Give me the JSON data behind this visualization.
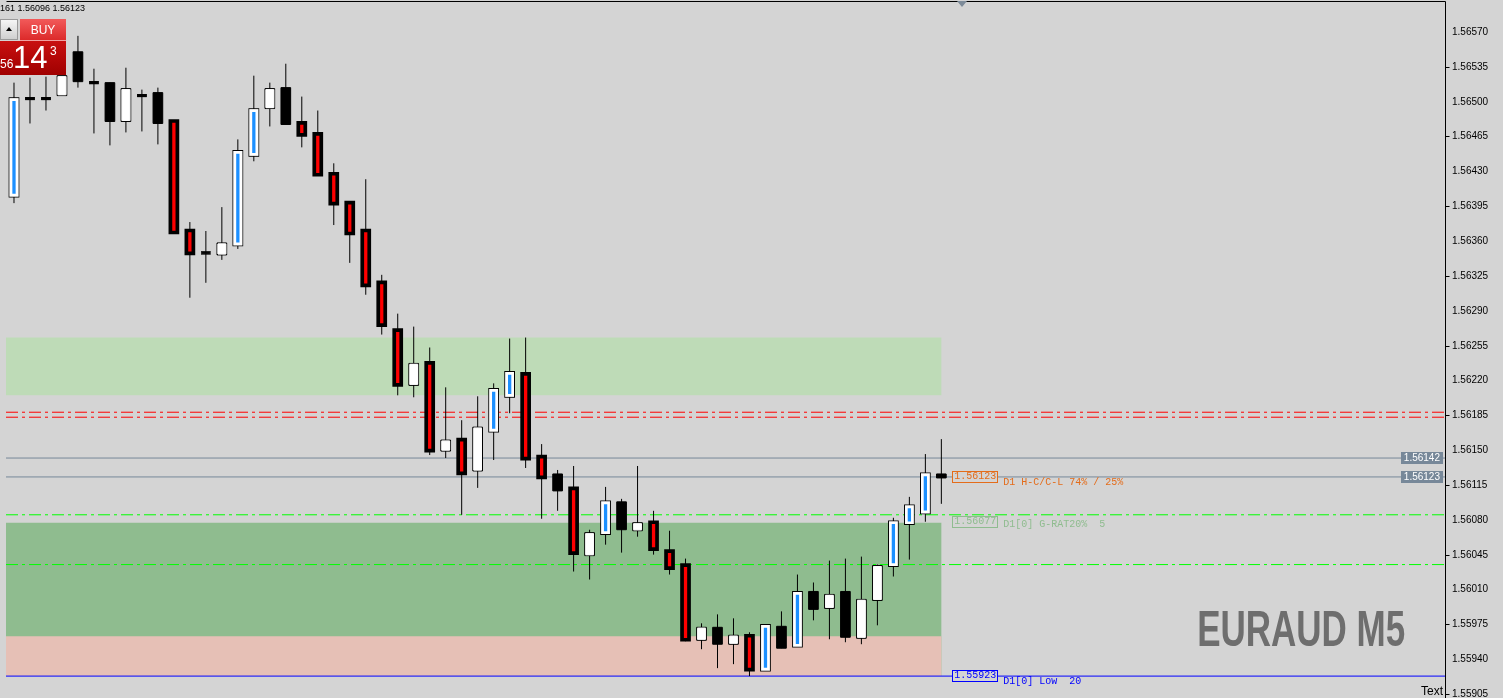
{
  "chart_data": {
    "type": "candlestick",
    "categories": [
      null,
      null,
      null,
      null,
      null,
      null,
      null,
      null,
      null,
      null,
      null,
      null,
      null,
      null,
      null,
      null,
      null,
      null,
      null,
      null,
      null,
      null,
      null,
      null,
      null,
      null,
      null,
      null,
      null,
      null,
      null,
      null,
      null,
      null,
      null,
      null,
      null,
      null,
      null,
      null,
      null,
      null,
      null,
      null,
      null,
      null,
      null,
      null,
      null,
      null,
      null,
      null,
      null,
      null,
      null,
      null,
      null,
      null,
      null,
      null,
      null,
      null,
      null,
      null,
      null,
      null,
      null,
      null,
      null,
      null,
      null,
      null,
      null,
      null,
      null,
      null,
      null,
      null,
      null,
      null,
      null,
      null,
      null,
      null,
      null,
      null,
      null,
      null,
      null,
      null
    ],
    "ohlc": [
      [
        1.56406,
        1.56519,
        1.56398,
        1.56502
      ],
      [
        1.56503,
        1.56524,
        1.56478,
        1.56503
      ],
      [
        1.56503,
        1.56525,
        1.56491,
        1.56503
      ],
      [
        1.56507,
        1.56525,
        1.56506,
        1.56525
      ],
      [
        1.56549,
        1.56566,
        1.56514,
        1.56521
      ],
      [
        1.56519,
        1.56533,
        1.56468,
        1.56519
      ],
      [
        1.56518,
        1.56519,
        1.56456,
        1.56481
      ],
      [
        1.56481,
        1.56534,
        1.56469,
        1.56512
      ],
      [
        1.56506,
        1.56512,
        1.5647,
        1.56506
      ],
      [
        1.56508,
        1.56514,
        1.56457,
        1.56479
      ],
      [
        1.5648,
        1.56481,
        1.56367,
        1.56369
      ],
      [
        1.5637,
        1.56379,
        1.56303,
        1.56348
      ],
      [
        1.56348,
        1.5637,
        1.56318,
        1.56348
      ],
      [
        1.56347,
        1.56394,
        1.56341,
        1.56357
      ],
      [
        1.56357,
        1.56462,
        1.56352,
        1.56449
      ],
      [
        1.56447,
        1.56526,
        1.5644,
        1.56491
      ],
      [
        1.56494,
        1.56519,
        1.56475,
        1.56512
      ],
      [
        1.56513,
        1.56538,
        1.56478,
        1.56478
      ],
      [
        1.56478,
        1.56505,
        1.56454,
        1.56467
      ],
      [
        1.56467,
        1.56491,
        1.56427,
        1.56427
      ],
      [
        1.56427,
        1.56438,
        1.56376,
        1.56398
      ],
      [
        1.56398,
        1.56398,
        1.56338,
        1.56368
      ],
      [
        1.5637,
        1.56422,
        1.56306,
        1.56316
      ],
      [
        1.56318,
        1.56326,
        1.56266,
        1.56276
      ],
      [
        1.5627,
        1.56287,
        1.56205,
        1.56216
      ],
      [
        1.56216,
        1.56274,
        1.56203,
        1.56236
      ],
      [
        1.56237,
        1.56253,
        1.56145,
        1.5615
      ],
      [
        1.5615,
        1.56213,
        1.56142,
        1.56159
      ],
      [
        1.5616,
        1.5618,
        1.56085,
        1.56127
      ],
      [
        1.5613,
        1.56204,
        1.56112,
        1.56172
      ],
      [
        1.5617,
        1.56217,
        1.5614,
        1.5621
      ],
      [
        1.56205,
        1.56262,
        1.56187,
        1.56227
      ],
      [
        1.56226,
        1.56263,
        1.56132,
        1.56142
      ],
      [
        1.56143,
        1.56156,
        1.56081,
        1.56123
      ],
      [
        1.56125,
        1.5613,
        1.56089,
        1.5611
      ],
      [
        1.56111,
        1.56134,
        1.56028,
        1.56047
      ],
      [
        1.56045,
        1.5607,
        1.5602,
        1.56066
      ],
      [
        1.56067,
        1.56113,
        1.56055,
        1.56097
      ],
      [
        1.56097,
        1.56101,
        1.56047,
        1.56071
      ],
      [
        1.5607,
        1.56134,
        1.56063,
        1.56076
      ],
      [
        1.56077,
        1.56089,
        1.56045,
        1.56051
      ],
      [
        1.56048,
        1.56069,
        1.56025,
        1.56032
      ],
      [
        1.56034,
        1.56041,
        1.55958,
        1.5596
      ],
      [
        1.5596,
        1.55976,
        1.5595,
        1.55971
      ],
      [
        1.55971,
        1.55985,
        1.55931,
        1.55956
      ],
      [
        1.55956,
        1.55981,
        1.55935,
        1.55963
      ],
      [
        1.55963,
        1.55967,
        1.55923,
        1.5593
      ],
      [
        1.5593,
        1.55974,
        1.5593,
        1.55973
      ],
      [
        1.55972,
        1.55988,
        1.55951,
        1.55952
      ],
      [
        1.55954,
        1.56025,
        1.55954,
        1.56006
      ],
      [
        1.56007,
        1.56017,
        1.55979,
        1.55991
      ],
      [
        1.55992,
        1.56039,
        1.5596,
        1.56004
      ],
      [
        1.56007,
        1.56041,
        1.55957,
        1.55963
      ],
      [
        1.55962,
        1.56043,
        1.55955,
        1.55999
      ],
      [
        1.56,
        1.56035,
        1.55974,
        1.56033
      ],
      [
        1.56035,
        1.56082,
        1.56023,
        1.56077
      ],
      [
        1.56077,
        1.56103,
        1.5604,
        1.56093
      ],
      [
        1.56088,
        1.56146,
        1.56078,
        1.56125
      ],
      [
        1.56125,
        1.56161,
        1.56096,
        1.56123
      ],
      null,
      null,
      null,
      null,
      null,
      null,
      null,
      null,
      null,
      null,
      null,
      null,
      null,
      null,
      null,
      null,
      null,
      null,
      null,
      null,
      null,
      null,
      null,
      null,
      null,
      null,
      null,
      null,
      null,
      null,
      null
    ],
    "colors": [
      "#1e90ff",
      "#000000",
      "#000000",
      "#ffffff",
      "#000000",
      "#000000",
      "#000000",
      "#ffffff",
      "#000000",
      "#000000",
      "#ff0000",
      "#ff0000",
      "#000000",
      "#ffffff",
      "#1e90ff",
      "#1e90ff",
      "#ffffff",
      "#000000",
      "#ff0000",
      "#ff0000",
      "#ff0000",
      "#ff0000",
      "#ff0000",
      "#ff0000",
      "#ff0000",
      "#ffffff",
      "#ff0000",
      "#ffffff",
      "#ff0000",
      "#ffffff",
      "#1e90ff",
      "#1e90ff",
      "#ff0000",
      "#ff0000",
      "#000000",
      "#ff0000",
      "#ffffff",
      "#1e90ff",
      "#000000",
      "#ffffff",
      "#ff0000",
      "#ff0000",
      "#ff0000",
      "#ffffff",
      "#000000",
      "#ffffff",
      "#ff0000",
      "#1e90ff",
      "#000000",
      "#1e90ff",
      "#000000",
      "#ffffff",
      "#000000",
      "#ffffff",
      "#ffffff",
      "#1e90ff",
      "#1e90ff",
      "#1e90ff",
      "#000000",
      null,
      null,
      null,
      null,
      null,
      null,
      null,
      null,
      null,
      null,
      null,
      null,
      null,
      null,
      null,
      null,
      null,
      null,
      null,
      null,
      null,
      null,
      null,
      null,
      null,
      null,
      null,
      null,
      null,
      null,
      null
    ],
    "ylim": [
      1.55901,
      1.56601
    ],
    "yticks": [
      1.55905,
      {
        "value": 1.5594,
        "label": "1.55940"
      },
      1.55975,
      {
        "value": 1.5601,
        "label": "1.56010"
      },
      1.56045,
      {
        "value": 1.5608,
        "label": "1.56080"
      },
      1.56115,
      {
        "value": 1.5615,
        "label": "1.56150"
      },
      1.56185,
      {
        "value": 1.5622,
        "label": "1.56220"
      },
      1.56255,
      {
        "value": 1.5629,
        "label": "1.56290"
      },
      1.56325,
      {
        "value": 1.5636,
        "label": "1.56360"
      },
      1.56395,
      {
        "value": 1.5643,
        "label": "1.56430"
      },
      1.56465,
      {
        "value": 1.565,
        "label": "1.56500"
      },
      1.56535,
      {
        "value": 1.5657,
        "label": "1.56570"
      }
    ],
    "tick_labels": "y",
    "bands": [
      {
        "axis": "y",
        "from": 1.56205,
        "to": 1.56263,
        "color": "#bedbb7"
      },
      {
        "axis": "y",
        "from": 1.55923,
        "to": 1.56077,
        "color": "#8fbc8f"
      },
      {
        "axis": "y",
        "from": 1.55923,
        "to": 1.55963,
        "color": "#e6c0b6"
      }
    ],
    "ref_lines": [
      {
        "axis": "y",
        "value": 1.56188,
        "color": "#ff0000",
        "line_style": "dashed"
      },
      {
        "axis": "y",
        "value": 1.56183,
        "color": "#ff0000",
        "line_style": "dashed"
      },
      {
        "axis": "y",
        "value": 1.56142,
        "label": "1.56142",
        "color": "#778899"
      },
      {
        "axis": "y",
        "value": 1.56123,
        "label": "1.56123",
        "color": "#778899"
      },
      {
        "axis": "y",
        "value": 1.56085,
        "color": "#00ff00",
        "line_style": "dashed"
      },
      {
        "axis": "y",
        "value": 1.56035,
        "color": "#00ff00",
        "line_style": "dashed"
      },
      {
        "axis": "y",
        "value": 1.55923,
        "color": "#0000ff"
      }
    ],
    "annotations": [
      "161 1.56096 1.56123",
      "BUY",
      "56",
      "14",
      "3",
      {
        "text": "1.56123",
        "y": 1.56123
      },
      {
        "text": "D1 H-C/C-L 74% / 25%",
        "y": 1.56123
      },
      "1.56077",
      "D1[0] G-RAT20%  5",
      {
        "text": "1.55923",
        "y": 1.55923
      },
      {
        "text": "D1[0] Low  20",
        "y": 1.55923
      },
      "EURAUD M5",
      "Text"
    ]
  }
}
